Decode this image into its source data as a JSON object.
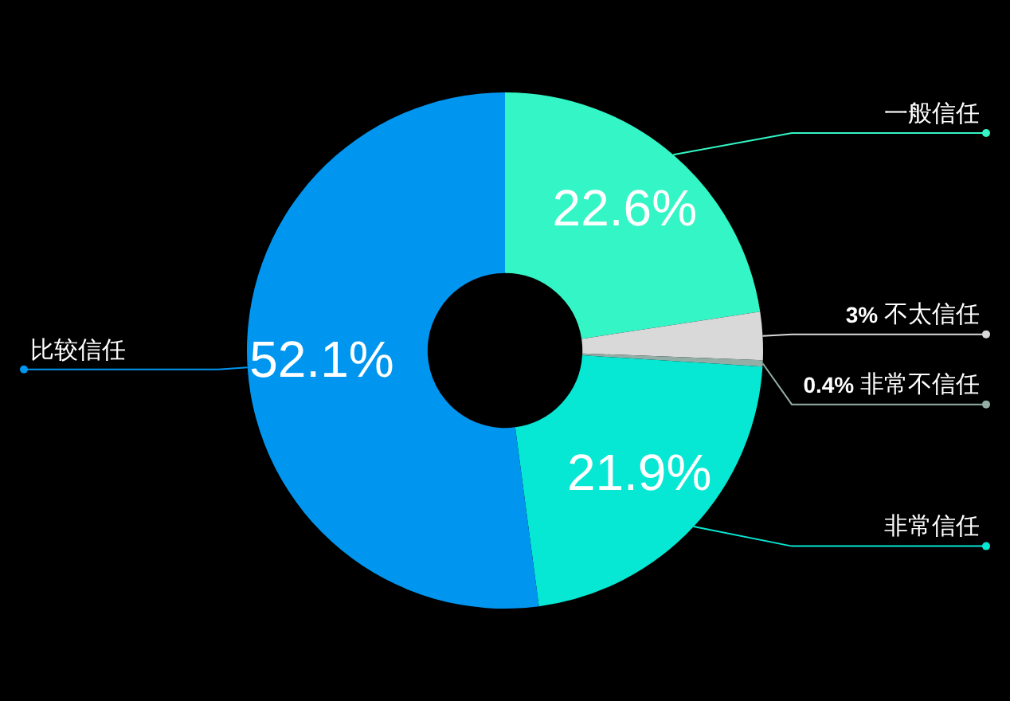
{
  "chart_data": {
    "type": "donut",
    "categories": [
      "一般信任",
      "不太信任",
      "非常不信任",
      "非常信任",
      "比较信任"
    ],
    "values": [
      22.6,
      3,
      0.4,
      21.9,
      52.1
    ],
    "colors": [
      "#33f5c5",
      "#d9d9d9",
      "#93aea6",
      "#06e8d4",
      "#0096f0"
    ],
    "value_labels": [
      "22.6%",
      "3%",
      "0.4%",
      "21.9%",
      "52.1%"
    ],
    "legend": false
  }
}
